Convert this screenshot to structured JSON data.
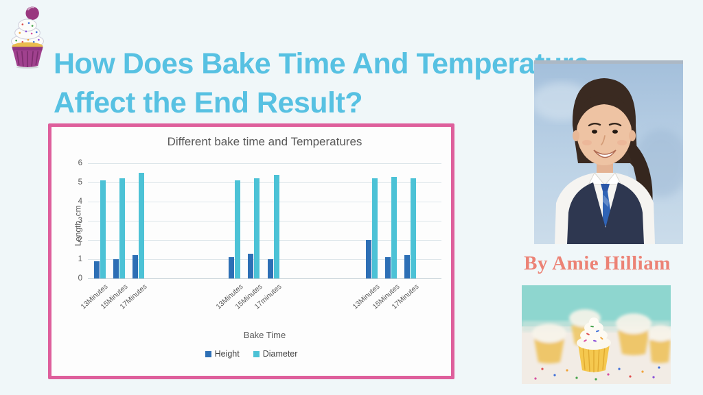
{
  "slide": {
    "title_line1": "How Does Bake Time And Temperature",
    "title_line2": "Affect the End Result?",
    "byline": "By Amie Hilliam",
    "colors": {
      "title": "#57c1e2",
      "byline": "#ec8275",
      "chart_border": "#de5f9c",
      "background": "#f0f7f9"
    }
  },
  "chart_data": {
    "type": "bar",
    "title": "Different bake time and Temperatures",
    "xlabel": "Bake Time",
    "ylabel": "Length  cm",
    "ylim": [
      0,
      6
    ],
    "yticks": [
      6,
      5,
      4,
      3,
      2,
      1,
      0
    ],
    "grid": true,
    "legend_position": "bottom",
    "category_groups": [
      [
        "13Minutes",
        "15Minutes",
        "17Minutes"
      ],
      [
        "13Minutes",
        "15Minutes",
        "17minutes"
      ],
      [
        "13Minutes",
        "15Minutes",
        "17Minutes"
      ]
    ],
    "series": [
      {
        "name": "Height",
        "color": "#2d6fb5",
        "values": [
          [
            0.9,
            1.0,
            1.2
          ],
          [
            1.1,
            1.3,
            1.0
          ],
          [
            2.0,
            1.1,
            1.2
          ]
        ]
      },
      {
        "name": "Diameter",
        "color": "#4cc2d6",
        "values": [
          [
            5.1,
            5.2,
            5.5
          ],
          [
            5.1,
            5.2,
            5.4
          ],
          [
            5.2,
            5.3,
            5.2
          ]
        ]
      }
    ]
  }
}
